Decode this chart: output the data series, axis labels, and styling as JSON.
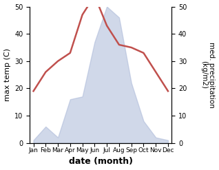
{
  "months": [
    "Jan",
    "Feb",
    "Mar",
    "Apr",
    "May",
    "Jun",
    "Jul",
    "Aug",
    "Sep",
    "Oct",
    "Nov",
    "Dec"
  ],
  "temperature": [
    19,
    26,
    30,
    33,
    47,
    54,
    43,
    36,
    35,
    33,
    26,
    19
  ],
  "precipitation": [
    1,
    6,
    2,
    16,
    17,
    37,
    50,
    46,
    22,
    8,
    2,
    1
  ],
  "temp_color": "#c0504d",
  "precip_color": "#aab8d8",
  "precip_alpha": 0.55,
  "xlabel": "date (month)",
  "ylabel_left": "max temp (C)",
  "ylabel_right": "med. precipitation\n(kg/m2)",
  "ylim": [
    0,
    50
  ],
  "figsize": [
    3.18,
    2.47
  ],
  "dpi": 100
}
